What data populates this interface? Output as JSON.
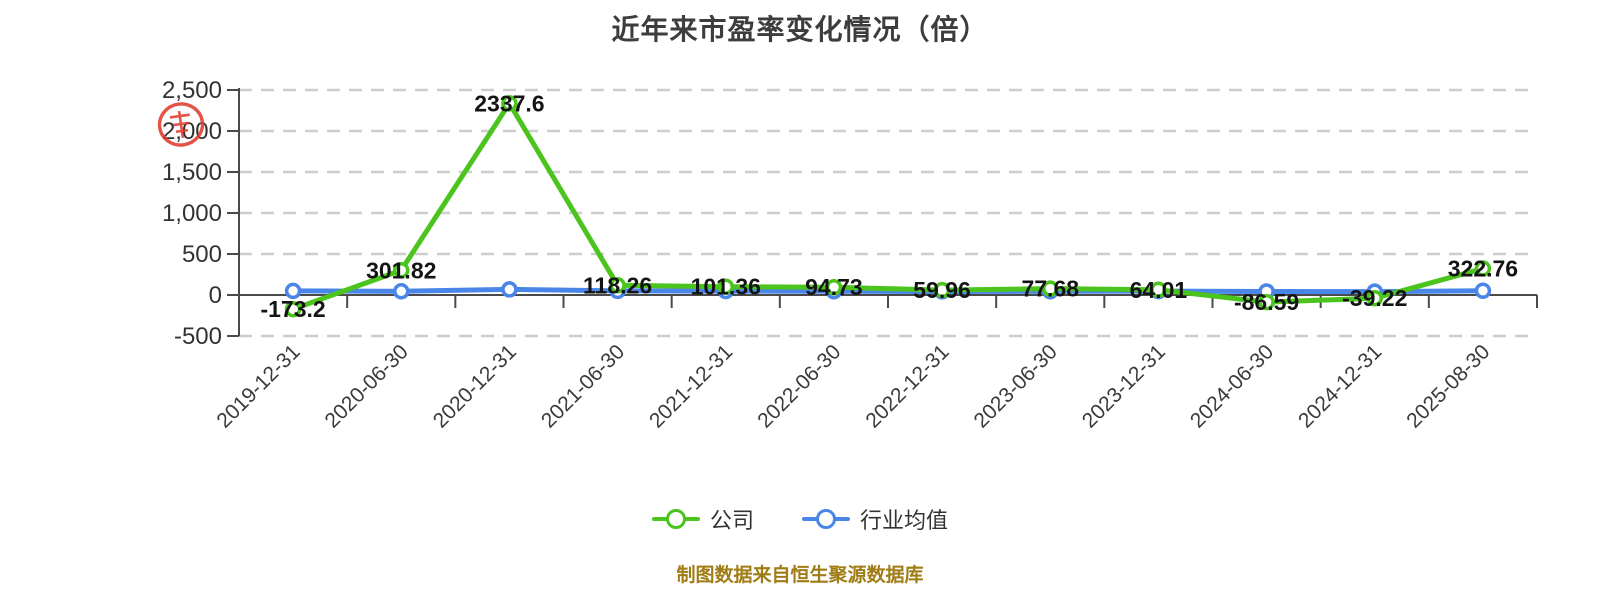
{
  "title": "近年来市盈率变化情况（倍）",
  "footer": "制图数据来自恒生聚源数据库",
  "legend": [
    {
      "label": "公司"
    },
    {
      "label": "行业均值"
    }
  ],
  "colors": {
    "company_line": "#4CC41E",
    "industry_line": "#4A86E8",
    "gridline": "#CDCDCD",
    "axis": "#4A4A4A",
    "data_label": "#141414",
    "tick_label": "#3A3A3A",
    "title_text": "#3D3D3D",
    "footer_text": "#A07C14",
    "seal_red": "#E23B2E"
  },
  "chart_data": {
    "type": "line",
    "title": "近年来市盈率变化情况（倍）",
    "categories": [
      "2019-12-31",
      "2020-06-30",
      "2020-12-31",
      "2021-06-30",
      "2021-12-31",
      "2022-06-30",
      "2022-12-31",
      "2023-06-30",
      "2023-12-31",
      "2024-06-30",
      "2024-12-31",
      "2025-08-30"
    ],
    "series": [
      {
        "name": "公司",
        "color": "#4CC41E",
        "values": [
          -173.2,
          301.82,
          2337.6,
          118.26,
          101.36,
          94.73,
          59.96,
          77.68,
          64.01,
          -86.59,
          -39.22,
          322.76
        ],
        "labels_visible": true
      },
      {
        "name": "行业均值",
        "color": "#4A86E8",
        "values": [
          50,
          45,
          68,
          50,
          48,
          45,
          43,
          45,
          47,
          43,
          41,
          52
        ],
        "labels_visible": false,
        "values_estimated_from_pixels": true
      }
    ],
    "ylim": [
      -500,
      2500
    ],
    "yticks": {
      "values": [
        2500,
        2000,
        1500,
        1000,
        500,
        0,
        -500
      ],
      "labels": [
        "2,500",
        "2,000",
        "1,500",
        "1,000",
        "500",
        "0",
        "-500"
      ]
    },
    "grid": "horizontal dashed lines",
    "x_label_rotation_deg": 45,
    "legend_position": "bottom-center",
    "marker": "white-filled circle with colored ring"
  }
}
